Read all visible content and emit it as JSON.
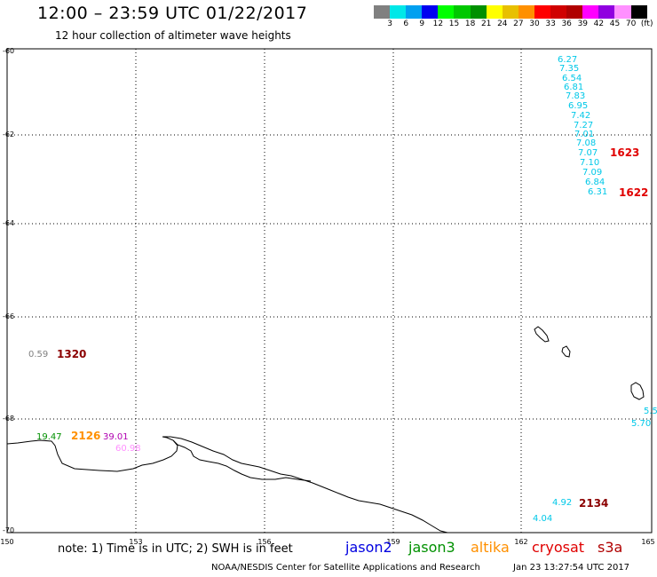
{
  "header": {
    "title": "12:00 – 23:59 UTC 01/22/2017",
    "subtitle": "12 hour collection of altimeter wave heights"
  },
  "colorbar": {
    "colors": [
      "#808080",
      "#00e8e8",
      "#00a0f0",
      "#0000f0",
      "#00ff00",
      "#00c800",
      "#009000",
      "#ffff00",
      "#e8c000",
      "#ff9000",
      "#ff0000",
      "#d00000",
      "#b00000",
      "#ff00ff",
      "#9000e0",
      "#ff90ff",
      "#000000"
    ],
    "labels": [
      "3",
      "6",
      "9",
      "12",
      "15",
      "18",
      "21",
      "24",
      "27",
      "30",
      "33",
      "36",
      "39",
      "42",
      "45",
      "70",
      "(ft)"
    ]
  },
  "axes": {
    "lat_labels": [
      "-60",
      "-62",
      "-64",
      "-66",
      "-68",
      "-70"
    ],
    "lon_labels": [
      "150",
      "153",
      "156",
      "159",
      "162",
      "165"
    ]
  },
  "wave_heights": {
    "track_1623_1622": [
      "6.27",
      "7.35",
      "6.54",
      "6.81",
      "7.83",
      "6.95",
      "7.42",
      "7.27",
      "7.01",
      "7.08",
      "7.07",
      "7.10",
      "7.09",
      "6.84",
      "6.31"
    ],
    "pass_labels": [
      {
        "text": "1623",
        "color": "#e00000"
      },
      {
        "text": "1622",
        "color": "#e00000"
      },
      {
        "text": "1320",
        "color": "#8b0000"
      },
      {
        "text": "2126",
        "color": "#ff9000"
      },
      {
        "text": "2134",
        "color": "#8b0000"
      }
    ],
    "misc_values": [
      {
        "text": "0.59",
        "color": "#808080"
      },
      {
        "text": "19.47",
        "color": "#009000"
      },
      {
        "text": "39.01",
        "color": "#b000b0"
      },
      {
        "text": "60.98",
        "color": "#ff90ff"
      },
      {
        "text": "5.5",
        "color": "#00c8e8"
      },
      {
        "text": "5.70",
        "color": "#00c8e8"
      },
      {
        "text": "4.92",
        "color": "#00c8e8"
      },
      {
        "text": "4.04",
        "color": "#00c8e8"
      }
    ]
  },
  "footer": {
    "note": "note: 1) Time is in UTC; 2) SWH is in feet",
    "legend": [
      {
        "name": "jason2",
        "color": "#0000e0"
      },
      {
        "name": "jason3",
        "color": "#009000"
      },
      {
        "name": "altika",
        "color": "#ff9000"
      },
      {
        "name": "cryosat",
        "color": "#e00000"
      },
      {
        "name": "s3a",
        "color": "#b00000"
      }
    ],
    "credit": "NOAA/NESDIS Center for Satellite Applications and Research",
    "timestamp": "Jan 23 13:27:54 UTC 2017"
  }
}
